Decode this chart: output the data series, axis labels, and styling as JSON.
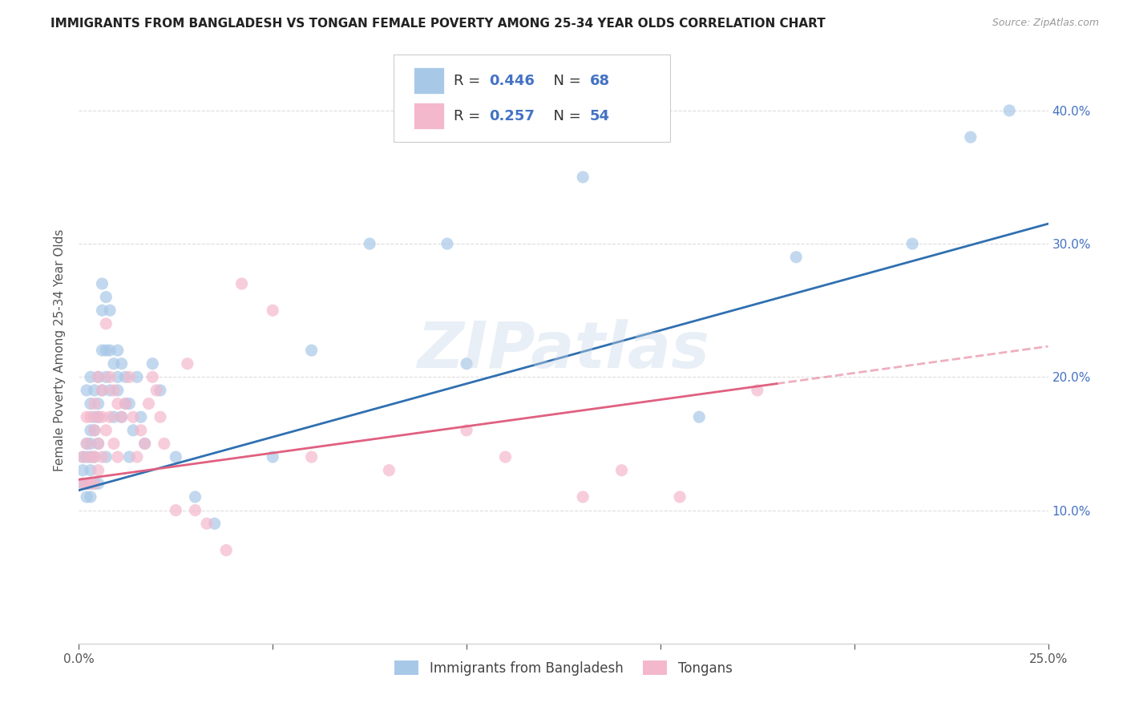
{
  "title": "IMMIGRANTS FROM BANGLADESH VS TONGAN FEMALE POVERTY AMONG 25-34 YEAR OLDS CORRELATION CHART",
  "source": "Source: ZipAtlas.com",
  "ylabel_label": "Female Poverty Among 25-34 Year Olds",
  "x_min": 0.0,
  "x_max": 0.25,
  "y_min": 0.0,
  "y_max": 0.44,
  "x_ticks": [
    0.0,
    0.05,
    0.1,
    0.15,
    0.2,
    0.25
  ],
  "x_tick_labels": [
    "0.0%",
    "",
    "",
    "",
    "",
    "25.0%"
  ],
  "y_ticks": [
    0.0,
    0.1,
    0.2,
    0.3,
    0.4
  ],
  "y_tick_labels_right": [
    "",
    "10.0%",
    "20.0%",
    "30.0%",
    "40.0%"
  ],
  "blue_color": "#a8c8e8",
  "pink_color": "#f4b8cc",
  "blue_line_color": "#3070b0",
  "pink_line_color": "#e06080",
  "blue_label": "Immigrants from Bangladesh",
  "pink_label": "Tongans",
  "legend_R_blue": "0.446",
  "legend_N_blue": "68",
  "legend_R_pink": "0.257",
  "legend_N_pink": "54",
  "blue_scatter_x": [
    0.001,
    0.001,
    0.001,
    0.002,
    0.002,
    0.002,
    0.002,
    0.002,
    0.003,
    0.003,
    0.003,
    0.003,
    0.003,
    0.003,
    0.003,
    0.003,
    0.004,
    0.004,
    0.004,
    0.004,
    0.004,
    0.005,
    0.005,
    0.005,
    0.005,
    0.005,
    0.006,
    0.006,
    0.006,
    0.006,
    0.007,
    0.007,
    0.007,
    0.007,
    0.008,
    0.008,
    0.008,
    0.009,
    0.009,
    0.01,
    0.01,
    0.01,
    0.011,
    0.011,
    0.012,
    0.012,
    0.013,
    0.013,
    0.014,
    0.015,
    0.016,
    0.017,
    0.019,
    0.021,
    0.025,
    0.03,
    0.035,
    0.05,
    0.06,
    0.075,
    0.095,
    0.1,
    0.13,
    0.16,
    0.185,
    0.215,
    0.23,
    0.24
  ],
  "blue_scatter_y": [
    0.14,
    0.13,
    0.12,
    0.19,
    0.15,
    0.14,
    0.12,
    0.11,
    0.2,
    0.18,
    0.16,
    0.15,
    0.14,
    0.13,
    0.12,
    0.11,
    0.19,
    0.17,
    0.16,
    0.14,
    0.12,
    0.2,
    0.18,
    0.17,
    0.15,
    0.12,
    0.27,
    0.25,
    0.22,
    0.19,
    0.26,
    0.22,
    0.2,
    0.14,
    0.25,
    0.22,
    0.19,
    0.21,
    0.17,
    0.22,
    0.2,
    0.19,
    0.21,
    0.17,
    0.2,
    0.18,
    0.18,
    0.14,
    0.16,
    0.2,
    0.17,
    0.15,
    0.21,
    0.19,
    0.14,
    0.11,
    0.09,
    0.14,
    0.22,
    0.3,
    0.3,
    0.21,
    0.35,
    0.17,
    0.29,
    0.3,
    0.38,
    0.4
  ],
  "pink_scatter_x": [
    0.001,
    0.001,
    0.002,
    0.002,
    0.002,
    0.003,
    0.003,
    0.003,
    0.004,
    0.004,
    0.004,
    0.004,
    0.005,
    0.005,
    0.005,
    0.005,
    0.006,
    0.006,
    0.006,
    0.007,
    0.007,
    0.008,
    0.008,
    0.009,
    0.009,
    0.01,
    0.01,
    0.011,
    0.012,
    0.013,
    0.014,
    0.015,
    0.016,
    0.017,
    0.018,
    0.019,
    0.02,
    0.021,
    0.022,
    0.025,
    0.028,
    0.03,
    0.033,
    0.038,
    0.042,
    0.05,
    0.06,
    0.08,
    0.1,
    0.11,
    0.13,
    0.14,
    0.155,
    0.175
  ],
  "pink_scatter_y": [
    0.14,
    0.12,
    0.17,
    0.15,
    0.12,
    0.17,
    0.14,
    0.12,
    0.18,
    0.16,
    0.14,
    0.12,
    0.2,
    0.17,
    0.15,
    0.13,
    0.19,
    0.17,
    0.14,
    0.24,
    0.16,
    0.2,
    0.17,
    0.19,
    0.15,
    0.18,
    0.14,
    0.17,
    0.18,
    0.2,
    0.17,
    0.14,
    0.16,
    0.15,
    0.18,
    0.2,
    0.19,
    0.17,
    0.15,
    0.1,
    0.21,
    0.1,
    0.09,
    0.07,
    0.27,
    0.25,
    0.14,
    0.13,
    0.16,
    0.14,
    0.11,
    0.13,
    0.11,
    0.19
  ],
  "blue_line_x": [
    0.0,
    0.25
  ],
  "blue_line_y": [
    0.115,
    0.315
  ],
  "pink_line_x": [
    0.0,
    0.18
  ],
  "pink_line_y": [
    0.123,
    0.195
  ],
  "watermark": "ZIPatlas",
  "bg_color": "#ffffff",
  "grid_color": "#dddddd",
  "title_color": "#222222",
  "axis_label_color": "#555555",
  "tick_color": "#555555",
  "right_tick_color": "#4472c4",
  "legend_text_color": "#333333",
  "legend_value_color": "#4472c4"
}
